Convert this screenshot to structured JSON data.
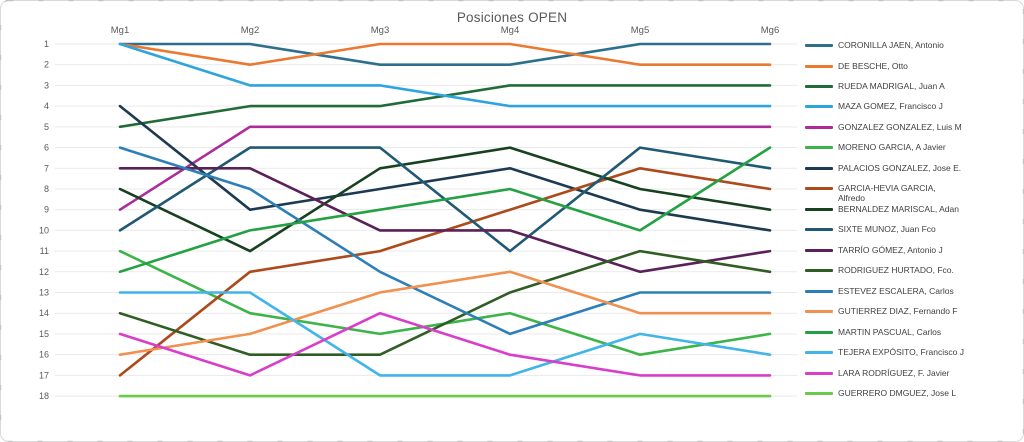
{
  "chart_data": {
    "type": "line",
    "title": "Posiciones OPEN",
    "subtitle": "",
    "x_categories": [
      "Mg1",
      "Mg2",
      "Mg3",
      "Mg4",
      "Mg5",
      "Mg6"
    ],
    "y_ticks": [
      1,
      2,
      3,
      4,
      5,
      6,
      7,
      8,
      9,
      10,
      11,
      12,
      13,
      14,
      15,
      16,
      17,
      18
    ],
    "y_axis": {
      "min": 1,
      "max": 18,
      "reversed": true,
      "meaning": "ranking position (1 = leader)"
    },
    "grid": true,
    "legend_position": "right",
    "colors": {
      "axis_text": "#595959",
      "legend_text": "#404040",
      "gridline": "#e9e9e9",
      "border": "#d9d9d9",
      "border_dash": "#c3c3c3",
      "background": "#ffffff"
    },
    "series": [
      {
        "name": "CORONILLA JAEN, Antonio",
        "color": "#2e6f8e",
        "values": [
          1,
          1,
          2,
          2,
          1,
          1
        ]
      },
      {
        "name": "DE BESCHE, Otto",
        "color": "#ea7a31",
        "values": [
          1,
          2,
          1,
          1,
          2,
          2
        ]
      },
      {
        "name": "RUEDA MADRIGAL, Juan A",
        "color": "#206b37",
        "values": [
          5,
          4,
          4,
          3,
          3,
          3
        ]
      },
      {
        "name": "MAZA GOMEZ, Francisco J",
        "color": "#2ea4de",
        "values": [
          1,
          3,
          3,
          4,
          4,
          4
        ]
      },
      {
        "name": "GONZALEZ GONZALEZ, Luis M",
        "color": "#ac2c9c",
        "values": [
          9,
          5,
          5,
          5,
          5,
          5
        ]
      },
      {
        "name": "MORENO GARCIA, A Javier",
        "color": "#3cb449",
        "values": [
          11,
          14,
          15,
          14,
          16,
          15
        ]
      },
      {
        "name": "PALACIOS GONZALEZ, Jose E.",
        "color": "#1d3a53",
        "values": [
          4,
          9,
          8,
          7,
          9,
          10
        ]
      },
      {
        "name": "GARCIA-HEVIA GARCIA,\nAlfredo",
        "color": "#ac4a1a",
        "values": [
          17,
          12,
          11,
          9,
          7,
          8
        ]
      },
      {
        "name": "BERNALDEZ MARISCAL, Adan",
        "color": "#18411f",
        "values": [
          8,
          11,
          7,
          6,
          8,
          9
        ]
      },
      {
        "name": "SIXTE MUNOZ, Juan Fco",
        "color": "#205973",
        "values": [
          10,
          6,
          6,
          11,
          6,
          7
        ]
      },
      {
        "name": "TARRÍO GÓMEZ, Antonio J",
        "color": "#5a2158",
        "values": [
          7,
          7,
          10,
          10,
          12,
          11
        ]
      },
      {
        "name": "RODRIGUEZ HURTADO, Fco.",
        "color": "#305d24",
        "values": [
          14,
          16,
          16,
          13,
          11,
          12
        ]
      },
      {
        "name": "ESTEVEZ ESCALERA, Carlos",
        "color": "#2e7fb8",
        "values": [
          6,
          8,
          12,
          15,
          13,
          13
        ]
      },
      {
        "name": "GUTIERREZ DIAZ, Fernando F",
        "color": "#f0914f",
        "values": [
          16,
          15,
          13,
          12,
          14,
          14
        ]
      },
      {
        "name": "MARTIN PASCUAL, Carlos",
        "color": "#23a143",
        "values": [
          12,
          10,
          9,
          8,
          10,
          6
        ]
      },
      {
        "name": "TEJERA EXPÓSITO, Francisco J",
        "color": "#41b4ea",
        "values": [
          13,
          13,
          17,
          17,
          15,
          16
        ]
      },
      {
        "name": "LARA RODRÍGUEZ, F. Javier",
        "color": "#d93ecb",
        "values": [
          15,
          17,
          14,
          16,
          17,
          17
        ]
      },
      {
        "name": "GUERRERO DMGUEZ, Jose L",
        "color": "#69c948",
        "values": [
          18,
          18,
          18,
          18,
          18,
          18
        ]
      }
    ]
  }
}
